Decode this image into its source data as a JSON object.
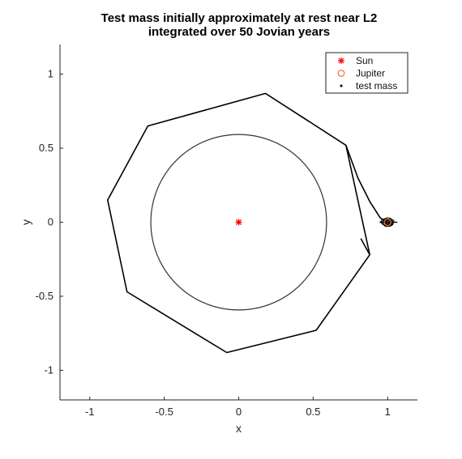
{
  "chart_data": {
    "type": "scatter",
    "title": [
      "Test mass initially approximately at rest near L2",
      "integrated over 50 Jovian years"
    ],
    "xlabel": "x",
    "ylabel": "y",
    "xlim": [
      -1.2,
      1.2
    ],
    "ylim": [
      -1.2,
      1.2
    ],
    "xticks": [
      -1,
      -0.5,
      0,
      0.5,
      1
    ],
    "xtick_labels": [
      "-1",
      "-0.5",
      "0",
      "0.5",
      "1"
    ],
    "yticks": [
      -1,
      -0.5,
      0,
      0.5,
      1
    ],
    "ytick_labels": [
      "-1",
      "-0.5",
      "0",
      "0.5",
      "1"
    ],
    "grid": false,
    "legend_position": "top-right",
    "legend": [
      "Sun",
      "Jupiter",
      "test mass"
    ],
    "colors": {
      "sun": "#ff0000",
      "jupiter": "#e8742a",
      "test_mass": "#000000"
    },
    "series": [
      {
        "name": "Sun",
        "marker": "asterisk",
        "x": [
          0
        ],
        "y": [
          0
        ]
      },
      {
        "name": "Jupiter",
        "marker": "circle",
        "x": [
          1.0
        ],
        "y": [
          0
        ]
      },
      {
        "name": "test mass",
        "marker": "dot",
        "star_polygon": [
          [
            0.18,
            0.87
          ],
          [
            0.72,
            0.52
          ],
          [
            0.88,
            -0.22
          ],
          [
            0.52,
            -0.73
          ],
          [
            -0.08,
            -0.88
          ],
          [
            -0.75,
            -0.47
          ],
          [
            -0.88,
            0.15
          ],
          [
            -0.61,
            0.65
          ]
        ],
        "circle_radius": 0.59,
        "tail_in": [
          [
            0.82,
            -0.11
          ],
          [
            0.88,
            -0.22
          ]
        ],
        "tail_out": [
          [
            0.72,
            0.52
          ],
          [
            0.8,
            0.3
          ],
          [
            0.88,
            0.14
          ],
          [
            0.95,
            0.03
          ],
          [
            0.99,
            0.0
          ]
        ]
      }
    ]
  }
}
